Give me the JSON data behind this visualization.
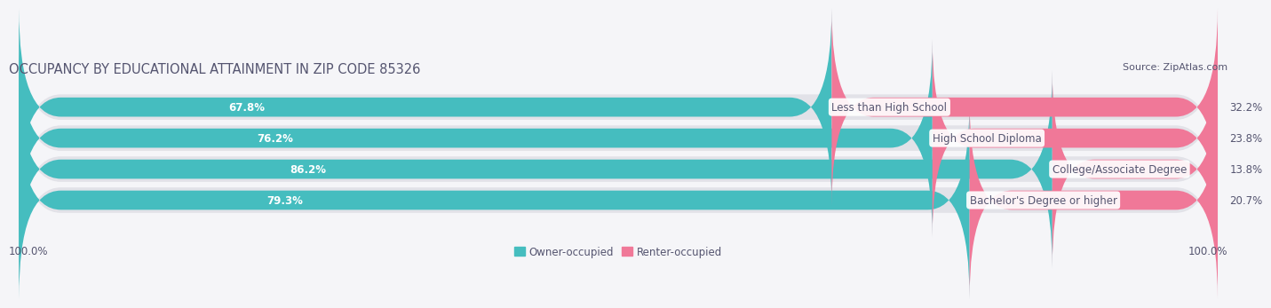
{
  "title": "OCCUPANCY BY EDUCATIONAL ATTAINMENT IN ZIP CODE 85326",
  "source": "Source: ZipAtlas.com",
  "categories": [
    "Less than High School",
    "High School Diploma",
    "College/Associate Degree",
    "Bachelor's Degree or higher"
  ],
  "owner_values": [
    67.8,
    76.2,
    86.2,
    79.3
  ],
  "renter_values": [
    32.2,
    23.8,
    13.8,
    20.7
  ],
  "owner_color": "#45bdbf",
  "renter_color": "#f07898",
  "owner_label": "Owner-occupied",
  "renter_label": "Renter-occupied",
  "row_bg_color": "#e2e2e8",
  "text_color_white": "#ffffff",
  "text_color_dark": "#555570",
  "axis_label_left": "100.0%",
  "axis_label_right": "100.0%",
  "title_fontsize": 10.5,
  "source_fontsize": 8,
  "bar_label_fontsize": 8.5,
  "category_fontsize": 8.5,
  "legend_fontsize": 8.5,
  "background_color": "#f5f5f8"
}
